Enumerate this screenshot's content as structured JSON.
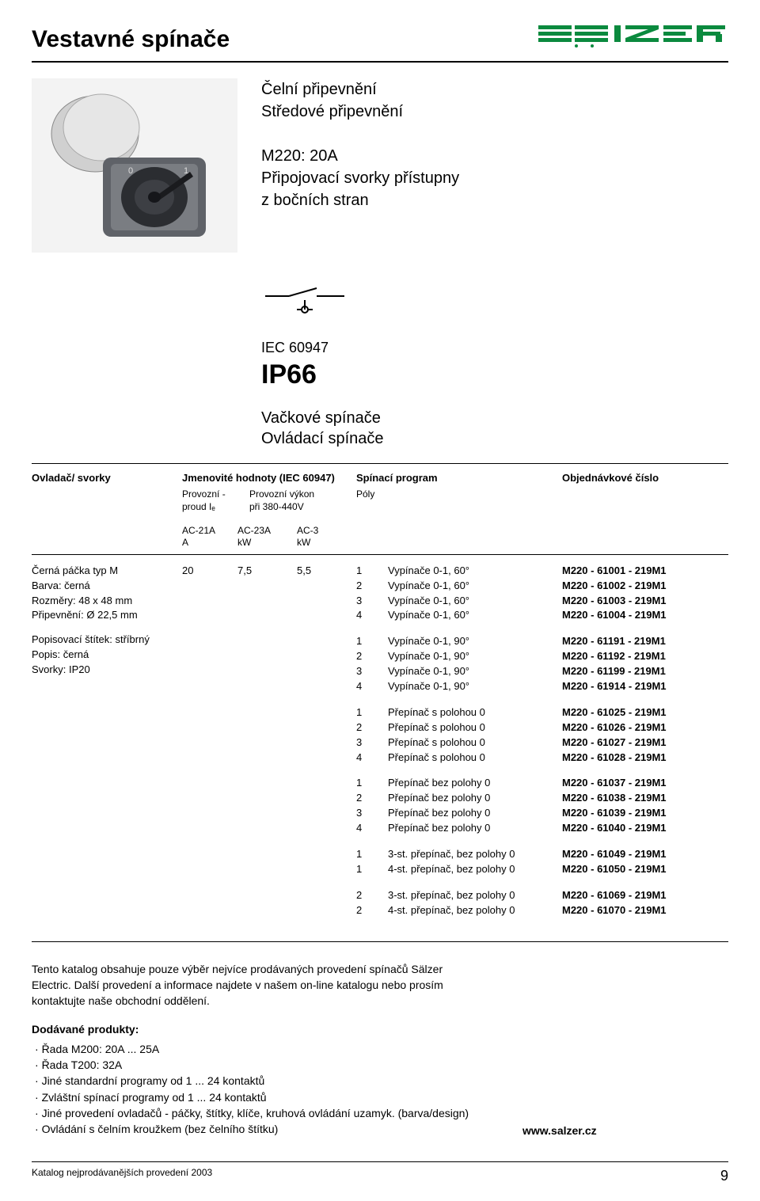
{
  "title": "Vestavné spínače",
  "brand_logo_color": "#0b8a3e",
  "intro": {
    "line1": "Čelní připevnění",
    "line2": "Středové připevnění",
    "model": "M220: 20A",
    "model_sub1": "Připojovací svorky přístupny",
    "model_sub2": "z bočních stran"
  },
  "iec": {
    "std": "IEC 60947",
    "ip": "IP66"
  },
  "subhead1": "Vačkové spínače",
  "subhead2": "Ovládací spínače",
  "thead": {
    "c1": "Ovladač/ svorky",
    "c2": "Jmenovité hodnoty (IEC 60947)",
    "c3": "Spínací program",
    "c4": "Objednávkové číslo",
    "c2a_l1": "Provozní -",
    "c2a_l2": "proud Iₑ",
    "c2b_l1": "Provozní výkon",
    "c2b_l2": "při 380-440V",
    "c3a": "Póly",
    "u1a": "AC-21A",
    "u1b": "A",
    "u2a": "AC-23A",
    "u2b": "kW",
    "u3a": "AC-3",
    "u3b": "kW"
  },
  "left1": [
    "Černá páčka typ M",
    "Barva: černá",
    "Rozměry: 48 x 48 mm",
    "Připevnění: Ø 22,5 mm"
  ],
  "left2": [
    "Popisovací štítek: stříbrný",
    "Popis: černá",
    "Svorky:  IP20"
  ],
  "ratings": {
    "r1": "20",
    "r2": "7,5",
    "r3": "5,5"
  },
  "groups": [
    {
      "poles": [
        "1",
        "2",
        "3",
        "4"
      ],
      "desc": [
        "Vypínače 0-1, 60°",
        "Vypínače 0-1, 60°",
        "Vypínače 0-1, 60°",
        "Vypínače 0-1, 60°"
      ],
      "orders": [
        "M220 - 61001 - 219M1",
        "M220 - 61002 - 219M1",
        "M220 - 61003 - 219M1",
        "M220 - 61004 - 219M1"
      ]
    },
    {
      "poles": [
        "1",
        "2",
        "3",
        "4"
      ],
      "desc": [
        "Vypínače 0-1, 90°",
        "Vypínače 0-1, 90°",
        "Vypínače 0-1, 90°",
        "Vypínače 0-1, 90°"
      ],
      "orders": [
        "M220 - 61191 - 219M1",
        "M220 - 61192 - 219M1",
        "M220 - 61199 - 219M1",
        "M220 - 61914 - 219M1"
      ]
    },
    {
      "poles": [
        "1",
        "2",
        "3",
        "4"
      ],
      "desc": [
        "Přepínač s polohou 0",
        "Přepínač s polohou 0",
        "Přepínač s polohou 0",
        "Přepínač s polohou 0"
      ],
      "orders": [
        "M220 - 61025 - 219M1",
        "M220 - 61026 - 219M1",
        "M220 - 61027 - 219M1",
        "M220 - 61028 - 219M1"
      ]
    },
    {
      "poles": [
        "1",
        "2",
        "3",
        "4"
      ],
      "desc": [
        "Přepínač bez polohy 0",
        "Přepínač bez polohy 0",
        "Přepínač bez polohy 0",
        "Přepínač bez polohy 0"
      ],
      "orders": [
        "M220 - 61037 - 219M1",
        "M220 - 61038 - 219M1",
        "M220 - 61039 - 219M1",
        "M220 - 61040 - 219M1"
      ]
    },
    {
      "poles": [
        "1",
        "1"
      ],
      "desc": [
        "3-st. přepínač, bez polohy 0",
        "4-st. přepínač, bez polohy 0"
      ],
      "orders": [
        "M220 - 61049 - 219M1",
        "M220 - 61050 - 219M1"
      ]
    },
    {
      "poles": [
        "2",
        "2"
      ],
      "desc": [
        "3-st. přepínač, bez polohy 0",
        "4-st. přepínač, bez polohy 0"
      ],
      "orders": [
        "M220 - 61069 - 219M1",
        "M220 - 61070 - 219M1"
      ]
    }
  ],
  "footer_para": "Tento katalog obsahuje pouze výběr nejvíce prodávaných provedení spínačů Sälzer Electric. Další provedení a informace najdete v našem on-line katalogu nebo prosím kontaktujte naše obchodní oddělení.",
  "delivered_head": "Dodávané produkty:",
  "delivered": [
    "Řada M200: 20A ... 25A",
    "Řada T200: 32A",
    "Jiné standardní programy od 1 ... 24 kontaktů",
    "Zvláštní spínací programy od 1 ... 24 kontaktů",
    "Jiné provedení ovladačů - páčky, štítky, klíče, kruhová ovládání uzamyk. (barva/design)",
    "Ovládání s čelním kroužkem (bez čelního štítku)"
  ],
  "url": "www.salzer.cz",
  "bottom_left": "Katalog nejprodávanějších provedení 2003",
  "pagenum": "9"
}
